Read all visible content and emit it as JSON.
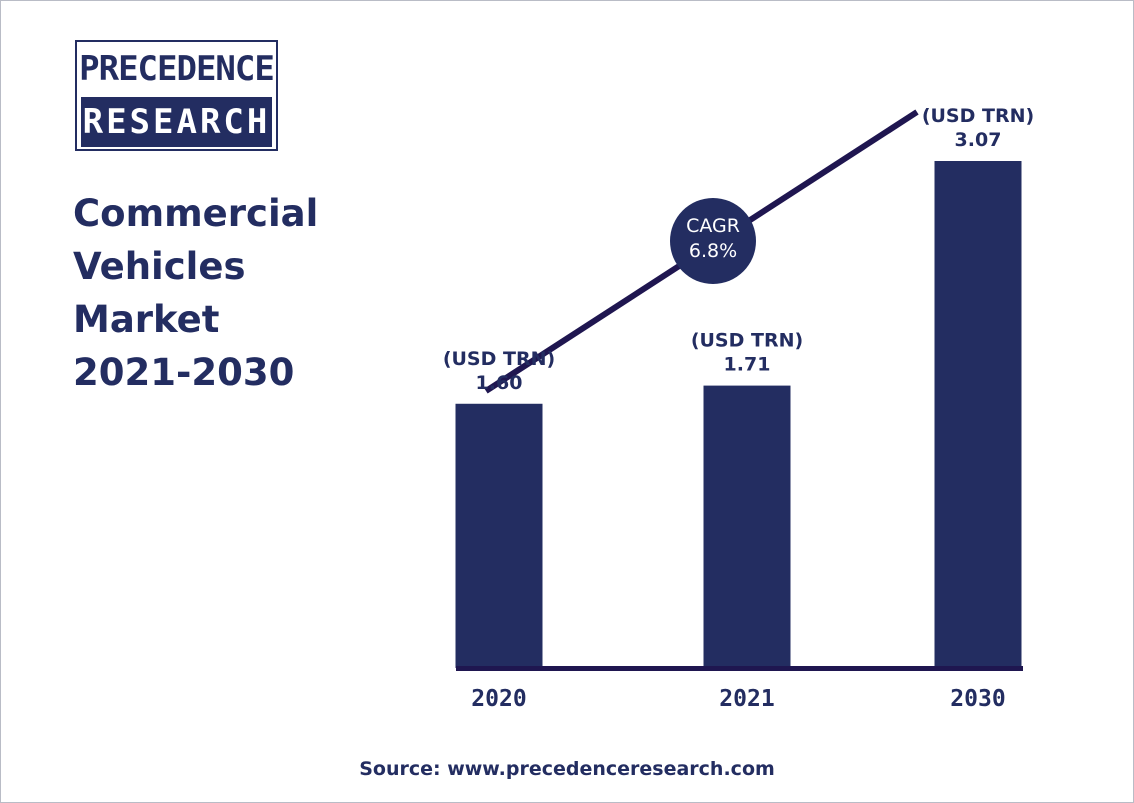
{
  "logo": {
    "line1": "PRECEDENCE",
    "line2": "RESEARCH"
  },
  "title_lines": [
    "Commercial",
    "Vehicles",
    "Market",
    "2021-2030"
  ],
  "source": "Source: www.precedenceresearch.com",
  "colors": {
    "navy": "#232d61",
    "trend": "#1f1650",
    "white": "#ffffff"
  },
  "chart_data": {
    "type": "bar",
    "categories": [
      "2020",
      "2021",
      "2030"
    ],
    "values": [
      1.6,
      1.71,
      3.07
    ],
    "value_unit_label": "(USD TRN)",
    "value_labels": [
      "1.60",
      "1.71",
      "3.07"
    ],
    "cagr": {
      "label": "CAGR",
      "value": "6.8%"
    },
    "ylim": [
      0,
      3.07
    ],
    "grid": false
  }
}
